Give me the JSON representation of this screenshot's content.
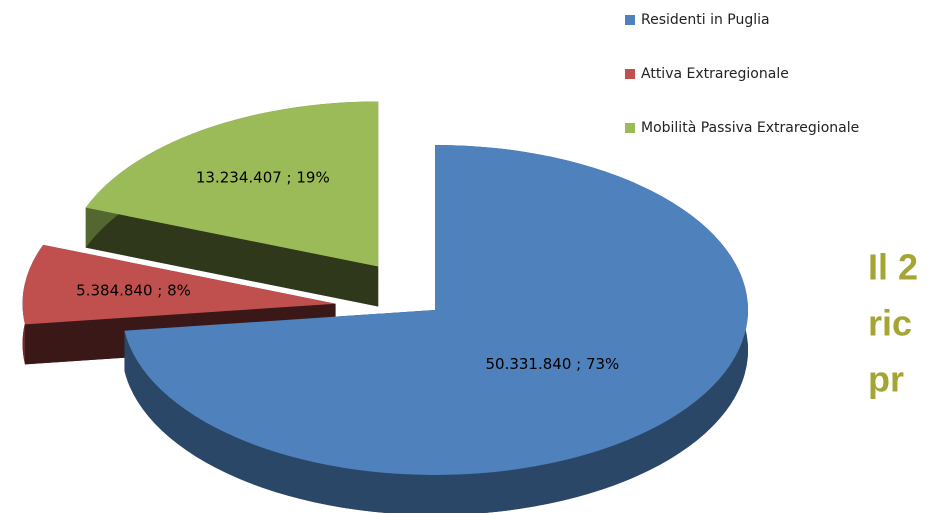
{
  "chart_data": {
    "type": "pie",
    "categories": [
      "Residenti in Puglia",
      "Attiva Extraregionale",
      "Mobilità Passiva Extraregionale"
    ],
    "values": [
      50331840,
      5384840,
      13234407
    ],
    "value_labels": [
      "50.331.840 ; 73%",
      "5.384.840 ; 8%",
      "13.234.407 ; 19%"
    ],
    "colors": [
      "#4f81bd",
      "#c0504d",
      "#9bbb59"
    ],
    "legend": "top-right",
    "annotations": [
      "Il 2",
      "ric",
      "pr"
    ]
  }
}
